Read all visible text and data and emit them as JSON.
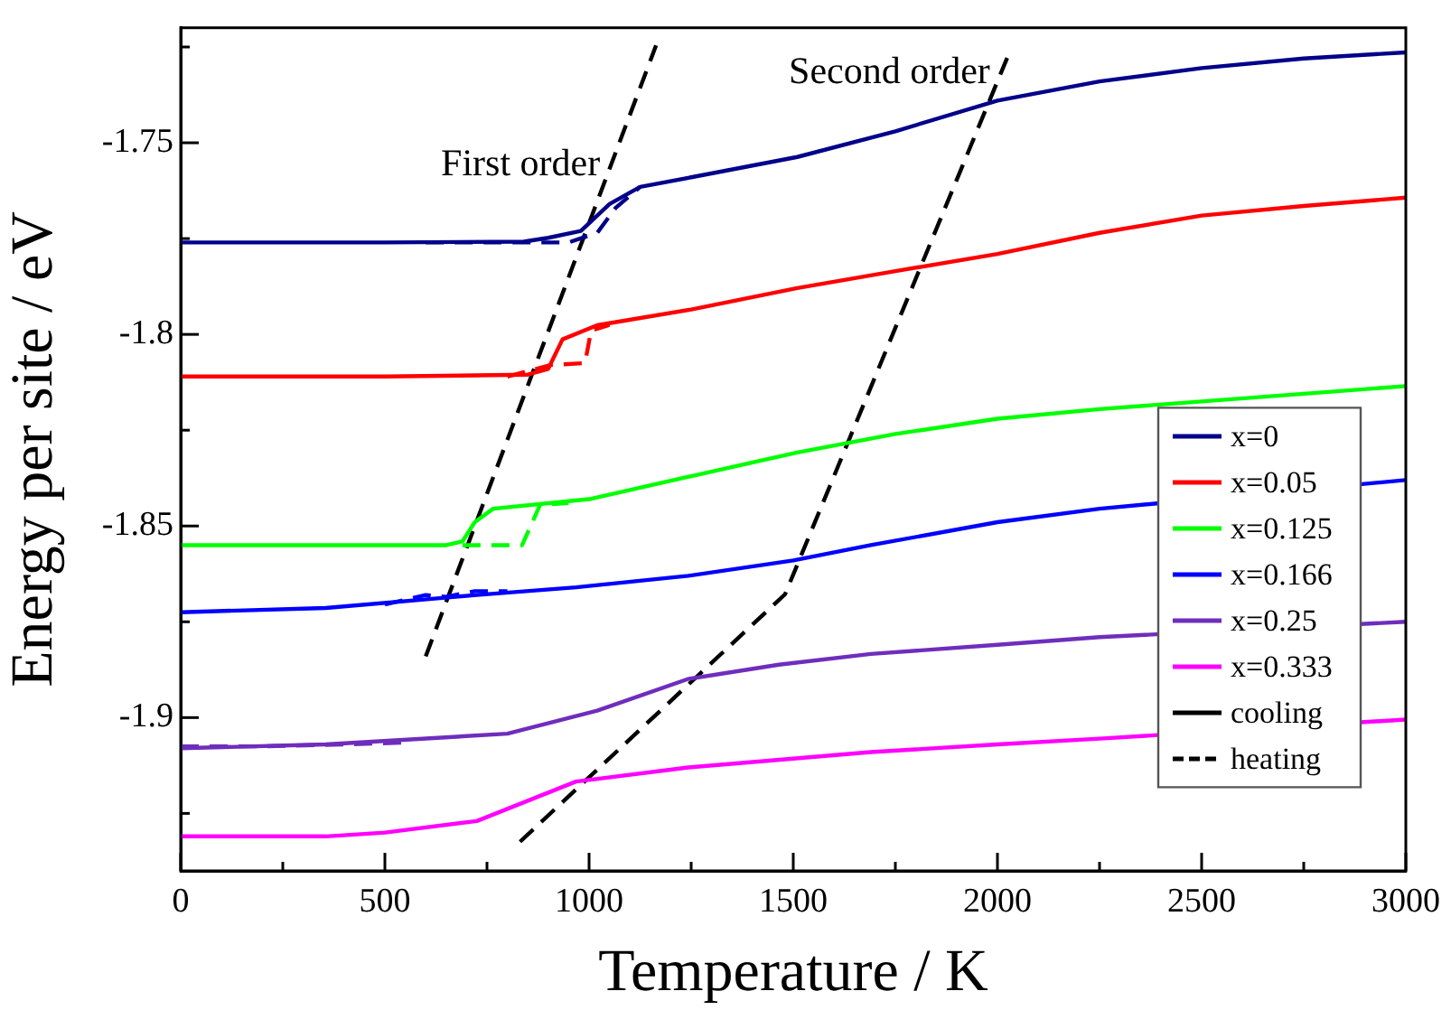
{
  "chart_data": {
    "type": "line",
    "xlabel": "Temperature / K",
    "ylabel": "Energy per site / eV",
    "xlim": [
      0,
      3000
    ],
    "xticks": [
      0,
      {
        "value": 250,
        "label": null
      },
      500,
      {
        "value": 750,
        "label": null
      },
      1000,
      {
        "value": 1250,
        "label": null
      },
      1500,
      {
        "value": 1750,
        "label": null
      },
      2000,
      {
        "value": 2250,
        "label": null
      },
      2500,
      {
        "value": 2750,
        "label": null
      },
      3000
    ],
    "ylim": [
      -1.94,
      -1.72
    ],
    "yticks": [
      {
        "value": -1.925,
        "label": null
      },
      -1.9,
      {
        "value": -1.875,
        "label": null
      },
      -1.85,
      {
        "value": -1.825,
        "label": null
      },
      -1.8,
      {
        "value": -1.775,
        "label": null
      },
      -1.75,
      {
        "value": -1.725,
        "label": null
      }
    ],
    "legend": "right",
    "annotations": [
      "First order",
      "Second order"
    ],
    "series": [
      {
        "name": "x=0",
        "color": "#00008b",
        "line_style": "solid",
        "x": [
          0,
          500,
          840,
          900,
          980,
          1050,
          1125,
          1250,
          1510,
          1750,
          2000,
          2250,
          2500,
          2750,
          3000
        ],
        "values": [
          -1.776,
          -1.776,
          -1.7758,
          -1.7748,
          -1.773,
          -1.766,
          -1.7615,
          -1.759,
          -1.7537,
          -1.747,
          -1.739,
          -1.734,
          -1.7305,
          -1.728,
          -1.7264
        ]
      },
      {
        "color": "#00008b",
        "line_style": "dashed",
        "x": [
          600,
          850,
          950,
          1020,
          1065,
          1125
        ],
        "values": [
          -1.776,
          -1.776,
          -1.776,
          -1.7735,
          -1.767,
          -1.7615
        ]
      },
      {
        "name": "x=0.05",
        "color": "#ff0000",
        "line_style": "solid",
        "x": [
          0,
          500,
          850,
          900,
          935,
          1020,
          1250,
          1510,
          1750,
          2000,
          2250,
          2500,
          2750,
          3000
        ],
        "values": [
          -1.811,
          -1.811,
          -1.8105,
          -1.809,
          -1.8013,
          -1.7976,
          -1.7935,
          -1.7879,
          -1.7835,
          -1.779,
          -1.7735,
          -1.769,
          -1.7665,
          -1.7643
        ]
      },
      {
        "color": "#ff0000",
        "line_style": "dashed",
        "x": [
          800,
          905,
          990,
          1005,
          1050
        ],
        "values": [
          -1.811,
          -1.808,
          -1.8075,
          -1.799,
          -1.7975
        ]
      },
      {
        "name": "x=0.125",
        "color": "#00ff00",
        "line_style": "solid",
        "x": [
          0,
          500,
          650,
          690,
          720,
          765,
          1000,
          1250,
          1510,
          1750,
          2000,
          2250,
          2500,
          2750,
          3000
        ],
        "values": [
          -1.855,
          -1.855,
          -1.855,
          -1.854,
          -1.849,
          -1.8455,
          -1.843,
          -1.837,
          -1.8308,
          -1.826,
          -1.822,
          -1.8195,
          -1.8175,
          -1.8155,
          -1.8135
        ]
      },
      {
        "color": "#00ff00",
        "line_style": "dashed",
        "x": [
          690,
          836,
          880,
          950
        ],
        "values": [
          -1.855,
          -1.855,
          -1.8445,
          -1.844
        ]
      },
      {
        "name": "x=0.166",
        "color": "#0000ff",
        "line_style": "solid",
        "x": [
          0,
          355,
          725,
          968,
          1243,
          1500,
          1690,
          2000,
          2250,
          3000
        ],
        "values": [
          -1.8725,
          -1.8714,
          -1.868,
          -1.866,
          -1.863,
          -1.859,
          -1.855,
          -1.849,
          -1.8455,
          -1.838
        ]
      },
      {
        "color": "#0000ff",
        "line_style": "dashed",
        "x": [
          500,
          600,
          650,
          720,
          800
        ],
        "values": [
          -1.8705,
          -1.868,
          -1.8685,
          -1.867,
          -1.867
        ]
      },
      {
        "name": "x=0.25",
        "color": "#6f2dbd",
        "line_style": "solid",
        "x": [
          0,
          355,
          800,
          1020,
          1243,
          1465,
          1690,
          2000,
          2250,
          3000
        ],
        "values": [
          -1.908,
          -1.907,
          -1.9042,
          -1.8982,
          -1.8899,
          -1.8862,
          -1.8834,
          -1.881,
          -1.879,
          -1.875
        ]
      },
      {
        "color": "#6f2dbd",
        "line_style": "dashed",
        "x": [
          0,
          200,
          400,
          560
        ],
        "values": [
          -1.9075,
          -1.9075,
          -1.907,
          -1.9065
        ]
      },
      {
        "name": "x=0.333",
        "color": "#ff00ff",
        "line_style": "solid",
        "x": [
          0,
          355,
          500,
          725,
          968,
          1243,
          1690,
          2000,
          2250,
          3000
        ],
        "values": [
          -1.931,
          -1.931,
          -1.93,
          -1.927,
          -1.9167,
          -1.913,
          -1.909,
          -1.907,
          -1.9055,
          -1.9005
        ]
      },
      {
        "name": "cooling",
        "color": "#000000",
        "line_style": "solid"
      },
      {
        "name": "heating",
        "color": "#000000",
        "line_style": "dashed"
      },
      {
        "type": "line",
        "color": "#000000",
        "line_style": "dashed",
        "x": [
          600,
          1164
        ],
        "values": [
          -1.884,
          -1.7246
        ]
      },
      {
        "type": "line",
        "color": "#000000",
        "line_style": "dashed",
        "x": [
          831,
          1480,
          2031
        ],
        "values": [
          -1.9324,
          -1.8678,
          -1.726
        ]
      }
    ]
  }
}
